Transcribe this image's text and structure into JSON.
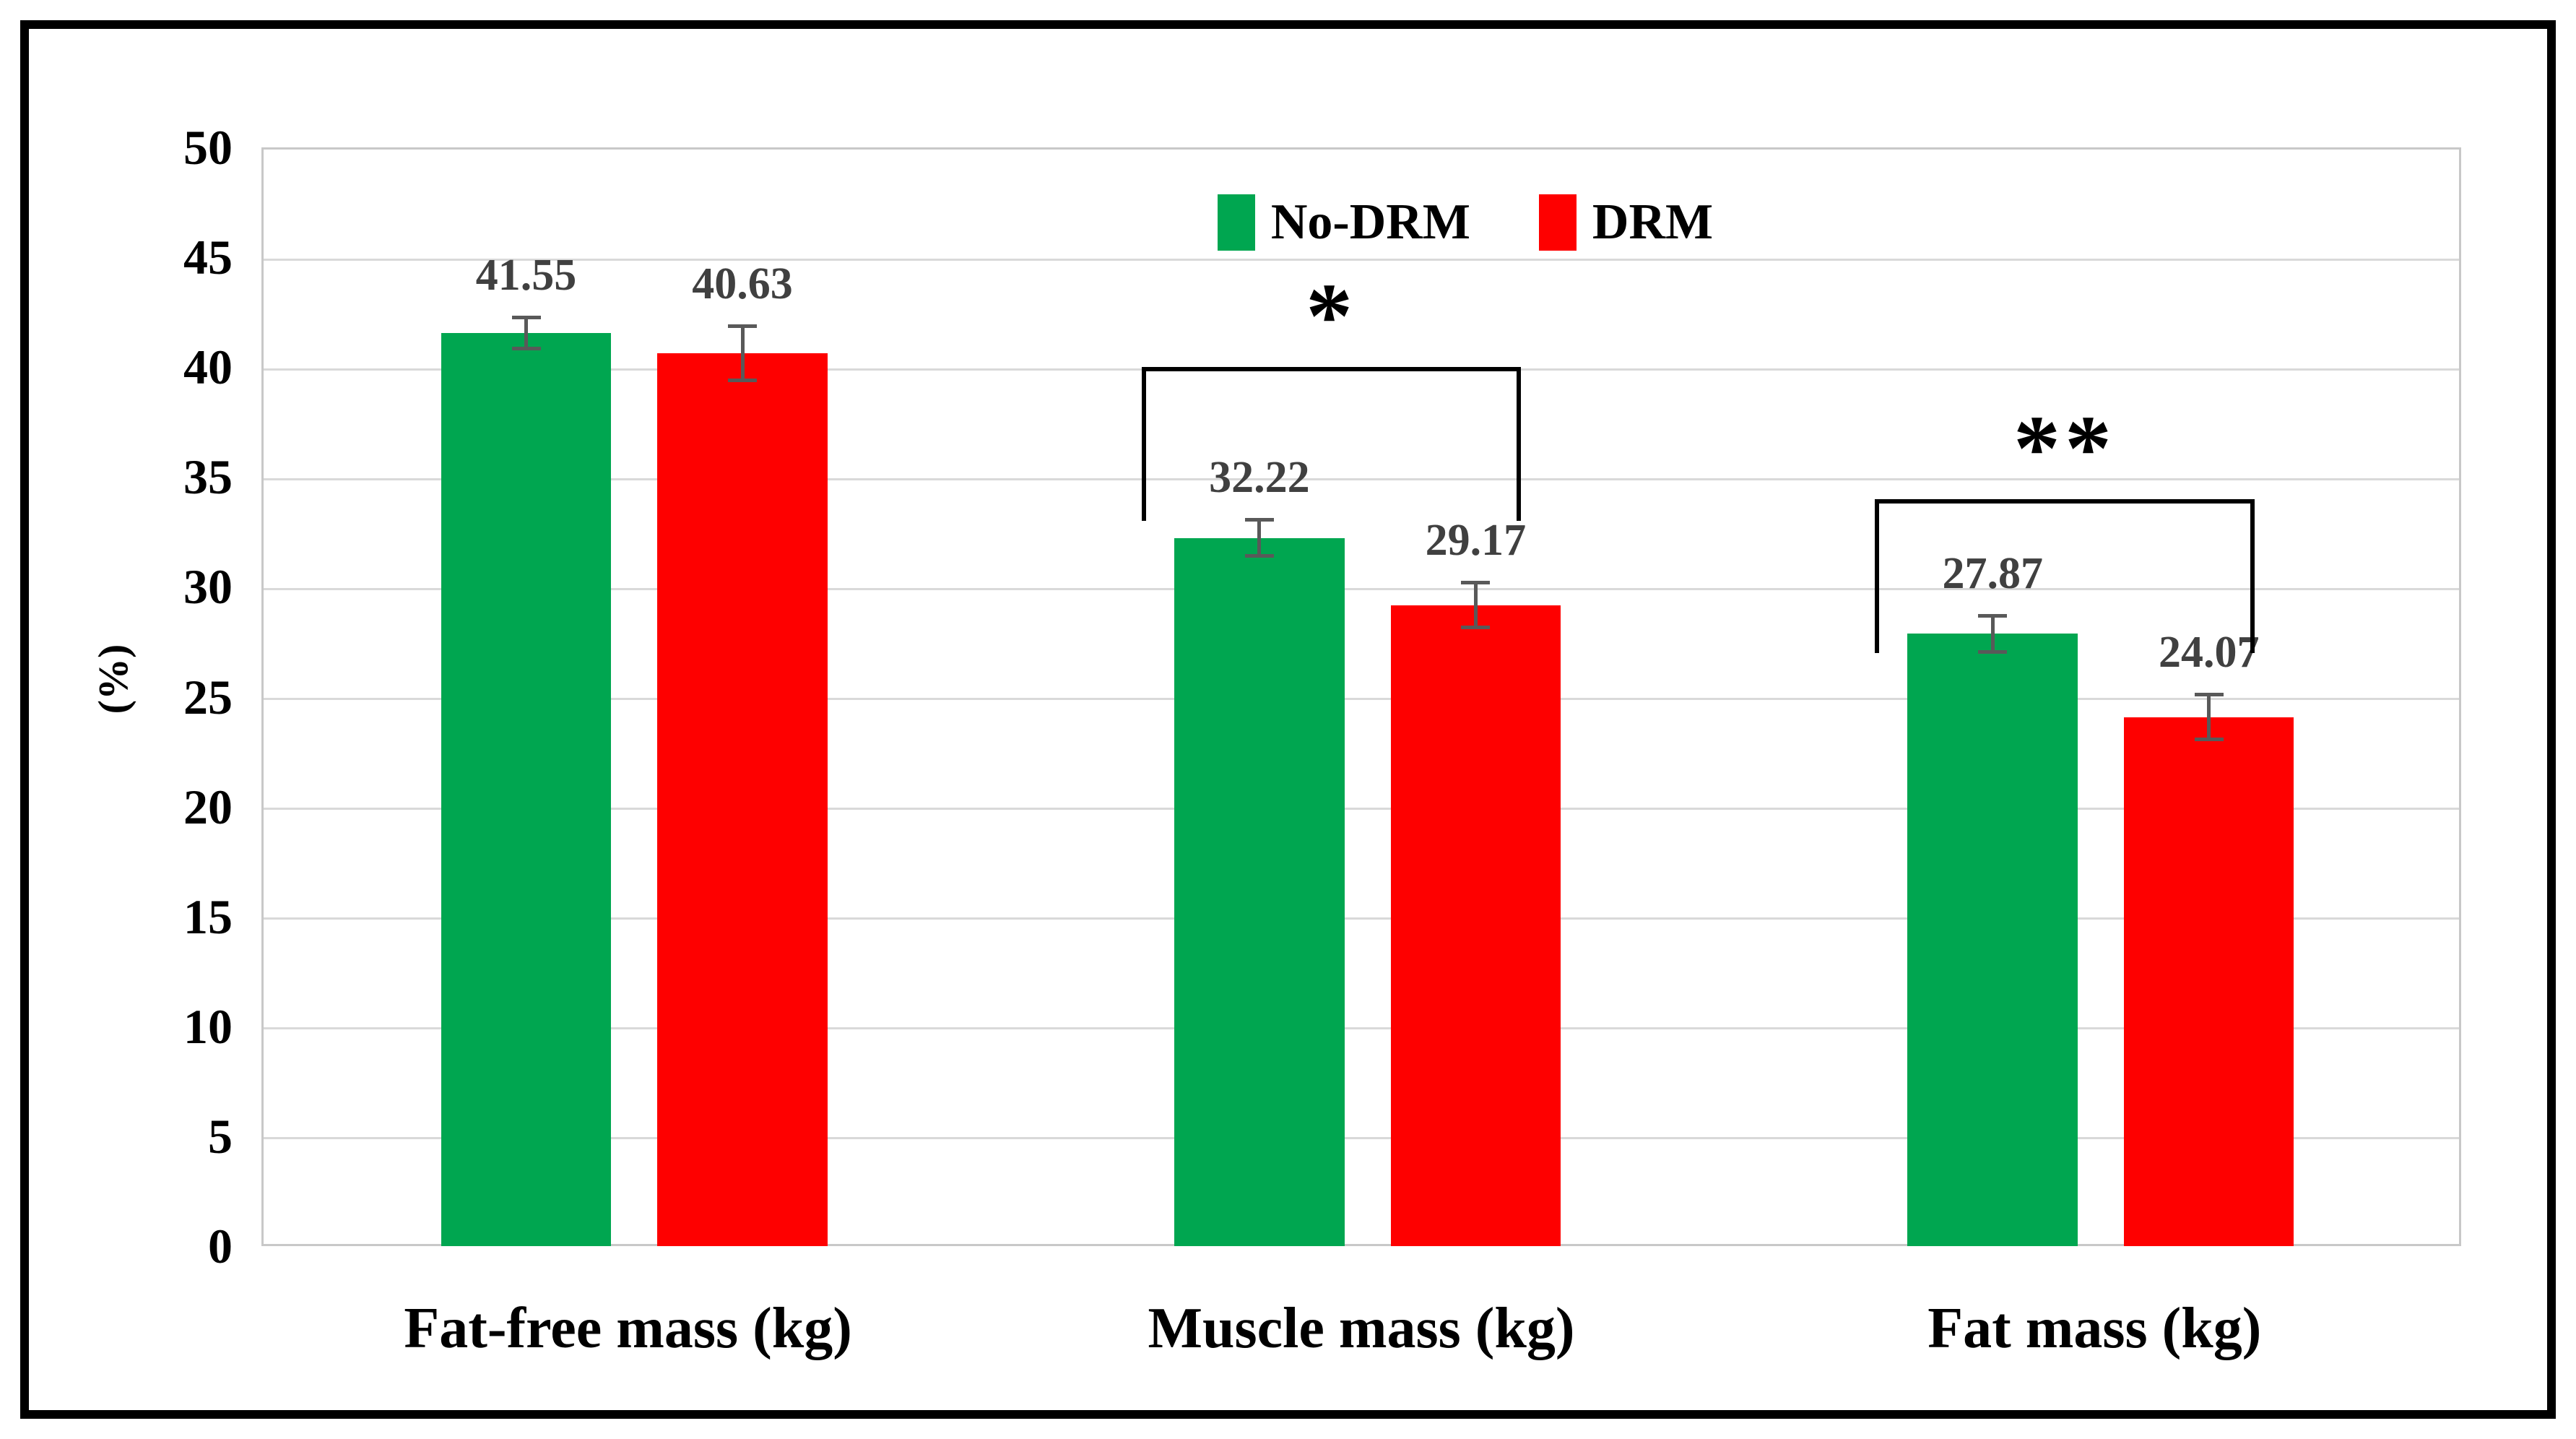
{
  "figure": {
    "background_color": "#FFFFFF",
    "frame_border_color": "#000000"
  },
  "chart_data": {
    "type": "bar",
    "title": "",
    "xlabel": "",
    "ylabel": "(%)",
    "ylim": [
      0,
      50
    ],
    "yticks": [
      0,
      5,
      10,
      15,
      20,
      25,
      30,
      35,
      40,
      45,
      50
    ],
    "grid": "horizontal",
    "gridline_color": "#D9D9D9",
    "plot_border_color": "#C8C8C8",
    "legend_position": "top-center",
    "categories": [
      "Fat-free mass (kg)",
      "Muscle mass (kg)",
      "Fat mass (kg)"
    ],
    "series": [
      {
        "name": "No-DRM",
        "color": "#00A650",
        "values": [
          41.55,
          32.22,
          27.87
        ],
        "labels": [
          "41.55",
          "32.22",
          "27.87"
        ],
        "errors": [
          0.8,
          0.9,
          0.9
        ]
      },
      {
        "name": "DRM",
        "color": "#FE0000",
        "values": [
          40.63,
          29.17,
          24.07
        ],
        "labels": [
          "40.63",
          "29.17",
          "24.07"
        ],
        "errors": [
          1.3,
          1.1,
          1.1
        ]
      }
    ],
    "error_bar_color": "#595959",
    "data_label_color": "#404040",
    "significance_brackets": [
      {
        "category_index": 1,
        "label": "*",
        "top_value": 40,
        "leg_bottom_value": 33,
        "color": "#000000"
      },
      {
        "category_index": 2,
        "label": "**",
        "top_value": 34,
        "leg_bottom_value": 27,
        "color": "#000000"
      }
    ]
  }
}
